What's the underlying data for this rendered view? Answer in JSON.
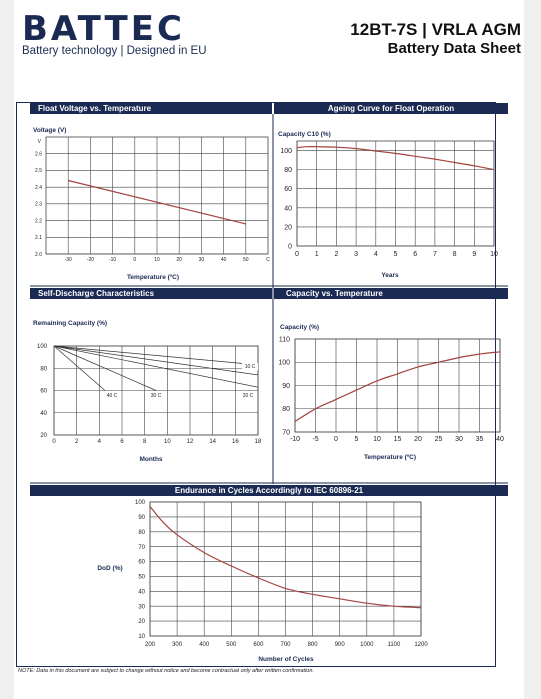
{
  "header": {
    "logo": "BATTEC",
    "tagline": "Battery technology | Designed in EU",
    "title": "12BT-7S | VRLA AGM",
    "subtitle": "Battery Data Sheet"
  },
  "footer": {
    "note": "NOTE: Data in this document are subject to change without notice and become contractual only after written confirmation."
  },
  "colors": {
    "panel_header": "#1a2a52",
    "curve": "#a3433f",
    "grid": "#444444"
  },
  "chart_data": [
    {
      "id": "float-voltage",
      "type": "line",
      "title": "Float Voltage vs. Temperature",
      "ylabel": "Voltage (V)",
      "yunit": "V",
      "xlabel": "Temperature (ºC)",
      "xunit": "C",
      "xlim": [
        -40,
        60
      ],
      "ylim": [
        2.0,
        2.7
      ],
      "xticks": [
        -30,
        -20,
        -10,
        0,
        10,
        20,
        30,
        40,
        50
      ],
      "yticks": [
        2.0,
        2.1,
        2.2,
        2.3,
        2.4,
        2.5,
        2.6
      ],
      "grid": true,
      "series": [
        {
          "x": [
            -30,
            50
          ],
          "y": [
            2.44,
            2.18
          ]
        }
      ]
    },
    {
      "id": "ageing",
      "type": "line",
      "title": "Ageing Curve for Float Operation",
      "ylabel": "Capacity C10 (%)",
      "xlabel": "Years",
      "xlim": [
        0,
        10
      ],
      "ylim": [
        0,
        110
      ],
      "xticks": [
        0,
        1,
        2,
        3,
        4,
        5,
        6,
        7,
        8,
        9,
        10
      ],
      "yticks": [
        0,
        20,
        40,
        60,
        80,
        100
      ],
      "grid": true,
      "series": [
        {
          "x": [
            0,
            0.5,
            1,
            2,
            3,
            4,
            5,
            6,
            7,
            8,
            9,
            10
          ],
          "y": [
            103,
            104,
            104,
            103.5,
            102,
            99.5,
            97,
            94,
            91,
            87.5,
            84,
            80
          ]
        }
      ]
    },
    {
      "id": "self-discharge",
      "type": "line",
      "title": "Self-Discharge Characteristics",
      "ylabel": "Remaining Capacity (%)",
      "xlabel": "Months",
      "xlim": [
        0,
        18
      ],
      "ylim": [
        20,
        100
      ],
      "xticks": [
        0,
        2,
        4,
        6,
        8,
        10,
        12,
        14,
        16,
        18
      ],
      "yticks": [
        20,
        40,
        60,
        80,
        100
      ],
      "grid": true,
      "series": [
        {
          "name": "10 C",
          "x": [
            0,
            18
          ],
          "y": [
            100,
            83
          ]
        },
        {
          "name": "20 C",
          "x": [
            0,
            18
          ],
          "y": [
            100,
            63
          ]
        },
        {
          "name": "30 C",
          "x": [
            0,
            9
          ],
          "y": [
            100,
            60
          ]
        },
        {
          "name": "40 C",
          "x": [
            0,
            4.5
          ],
          "y": [
            100,
            60
          ]
        },
        {
          "x": [
            0,
            18
          ],
          "y": [
            100,
            74
          ]
        }
      ]
    },
    {
      "id": "capacity-temp",
      "type": "line",
      "title": "Capacity vs. Temperature",
      "ylabel": "Capacity (%)",
      "xlabel": "Temperature (ºC)",
      "xlim": [
        -10,
        40
      ],
      "ylim": [
        70,
        110
      ],
      "xticks": [
        -10,
        -5,
        0,
        5,
        10,
        15,
        20,
        25,
        30,
        35,
        40
      ],
      "yticks": [
        70,
        80,
        90,
        100,
        110
      ],
      "grid": true,
      "series": [
        {
          "x": [
            -10,
            -5,
            0,
            5,
            10,
            15,
            20,
            25,
            30,
            35,
            40
          ],
          "y": [
            74.5,
            80,
            84,
            88,
            92,
            95,
            98,
            100,
            102,
            103.5,
            104.5
          ]
        }
      ]
    },
    {
      "id": "endurance",
      "type": "line",
      "title": "Endurance in Cycles Accordingly to IEC 60896-21",
      "ylabel": "DoD (%)",
      "xlabel": "Number of Cycles",
      "xlim": [
        200,
        1200
      ],
      "ylim": [
        10,
        100
      ],
      "xticks": [
        200,
        300,
        400,
        500,
        600,
        700,
        800,
        900,
        1000,
        1100,
        1200
      ],
      "yticks": [
        10,
        20,
        30,
        40,
        50,
        60,
        70,
        80,
        90,
        100
      ],
      "grid": true,
      "series": [
        {
          "x": [
            200,
            250,
            300,
            400,
            500,
            600,
            700,
            800,
            900,
            1000,
            1100,
            1200
          ],
          "y": [
            97,
            86,
            78,
            66,
            57,
            49,
            42,
            38,
            35,
            32,
            30,
            29
          ]
        }
      ]
    }
  ]
}
